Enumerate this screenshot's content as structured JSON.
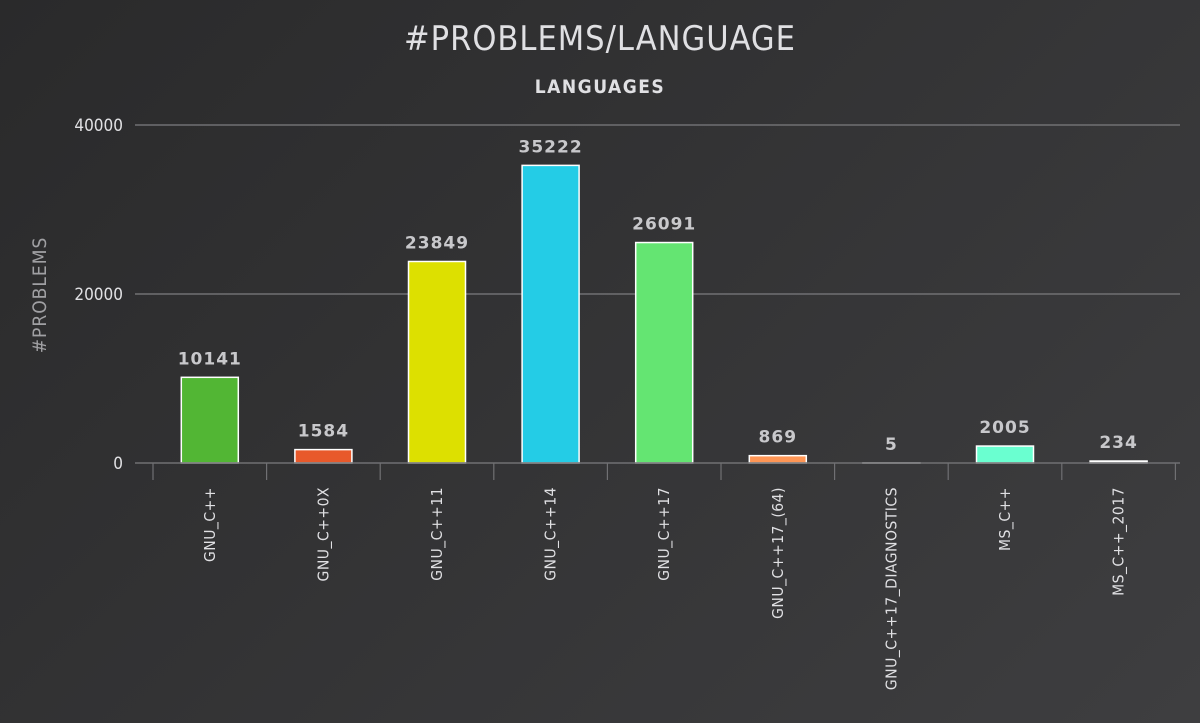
{
  "chart_data": {
    "type": "bar",
    "title": "#PROBLEMS/LANGUAGE",
    "subtitle": "LANGUAGES",
    "xlabel": "",
    "ylabel": "#PROBLEMS",
    "ylim": [
      0,
      40000
    ],
    "yticks": [
      0,
      20000,
      40000
    ],
    "grid": true,
    "categories": [
      "GNU_C++",
      "GNU_C++0X",
      "GNU_C++11",
      "GNU_C++14",
      "GNU_C++17",
      "GNU_C++17_(64)",
      "GNU_C++17_DIAGNOSTICS",
      "MS_C++",
      "MS_C++_2017"
    ],
    "values": [
      10141,
      1584,
      23849,
      35222,
      26091,
      869,
      5,
      2005,
      234
    ],
    "colors": [
      "#52b634",
      "#e8592b",
      "#dde000",
      "#24cce6",
      "#64e572",
      "#ff9655",
      "#fff263",
      "#6affd0",
      "#ffffff"
    ]
  }
}
